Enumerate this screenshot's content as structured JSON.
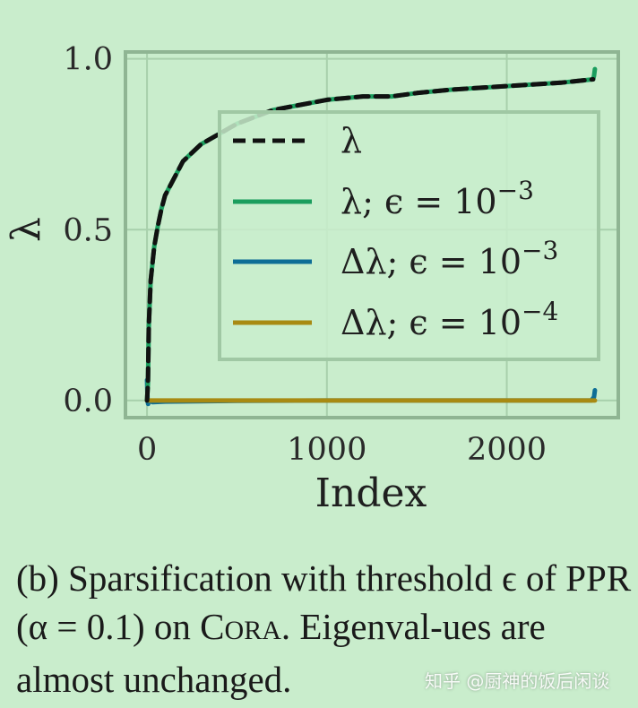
{
  "chart_data": {
    "type": "line",
    "xlabel": "Index",
    "ylabel": "λ",
    "xlim": [
      -120,
      2620
    ],
    "ylim": [
      -0.05,
      1.02
    ],
    "xticks": [
      {
        "value": 0,
        "label": "0"
      },
      {
        "value": 1000,
        "label": "1000"
      },
      {
        "value": 2000,
        "label": "2000"
      }
    ],
    "yticks": [
      {
        "value": 0.0,
        "label": "0.0"
      },
      {
        "value": 0.5,
        "label": "0.5"
      },
      {
        "value": 1.0,
        "label": "1.0"
      }
    ],
    "grid": true,
    "legend_position": "center-right",
    "series": [
      {
        "name": "λ",
        "color": "#111111",
        "style": "dashed",
        "x": [
          0,
          5,
          10,
          20,
          40,
          60,
          80,
          100,
          150,
          200,
          300,
          400,
          500,
          600,
          700,
          800,
          1000,
          1200,
          1360,
          1500,
          1700,
          2000,
          2300,
          2480
        ],
        "y": [
          0.0,
          0.05,
          0.22,
          0.35,
          0.45,
          0.51,
          0.56,
          0.6,
          0.65,
          0.7,
          0.75,
          0.78,
          0.81,
          0.83,
          0.85,
          0.86,
          0.88,
          0.89,
          0.89,
          0.9,
          0.91,
          0.92,
          0.93,
          0.94
        ]
      },
      {
        "name": "λ; ϵ = 10⁻³",
        "color": "#1b9e5e",
        "style": "solid",
        "x": [
          0,
          5,
          10,
          20,
          40,
          60,
          80,
          100,
          150,
          200,
          300,
          400,
          500,
          600,
          700,
          800,
          1000,
          1200,
          1360,
          1500,
          1700,
          2000,
          2300,
          2480,
          2485,
          2490
        ],
        "y": [
          0.0,
          0.05,
          0.22,
          0.35,
          0.45,
          0.51,
          0.56,
          0.6,
          0.65,
          0.7,
          0.75,
          0.78,
          0.81,
          0.83,
          0.85,
          0.86,
          0.88,
          0.89,
          0.89,
          0.9,
          0.91,
          0.92,
          0.93,
          0.94,
          0.95,
          0.97
        ]
      },
      {
        "name": "Δλ; ϵ = 10⁻³",
        "color": "#0e6e96",
        "style": "solid",
        "x": [
          0,
          3,
          6,
          10,
          30,
          100,
          500,
          1000,
          1500,
          2000,
          2470,
          2485,
          2490
        ],
        "y": [
          0.06,
          0.0,
          -0.01,
          0.0,
          -0.005,
          -0.003,
          -0.001,
          0.0,
          0.0,
          0.0,
          0.0,
          0.01,
          0.03
        ]
      },
      {
        "name": "Δλ; ϵ = 10⁻⁴",
        "color": "#a88a12",
        "style": "solid",
        "x": [
          0,
          10,
          100,
          500,
          1000,
          1500,
          2000,
          2490
        ],
        "y": [
          0.0,
          0.0,
          0.0,
          0.0,
          0.0,
          0.0,
          0.0,
          0.0
        ]
      }
    ]
  },
  "legend": [
    {
      "label_main": "λ",
      "label_sup": ""
    },
    {
      "label_main": "λ; ϵ = 10",
      "label_sup": "−3"
    },
    {
      "label_main": "Δλ; ϵ = 10",
      "label_sup": "−3"
    },
    {
      "label_main": "Δλ; ϵ = 10",
      "label_sup": "−4"
    }
  ],
  "caption": {
    "part1": "(b) Sparsification with threshold ϵ of PPR (α = 0.1) on ",
    "cora_c": "C",
    "cora_rest": "ORA",
    "part2": ". Eigenval-ues are almost unchanged."
  },
  "watermark": "知乎 @厨神的饭后闲谈",
  "colors": {
    "background": "#c9edcc",
    "frame": "#8fb593",
    "grid": "#a8d0ac"
  }
}
